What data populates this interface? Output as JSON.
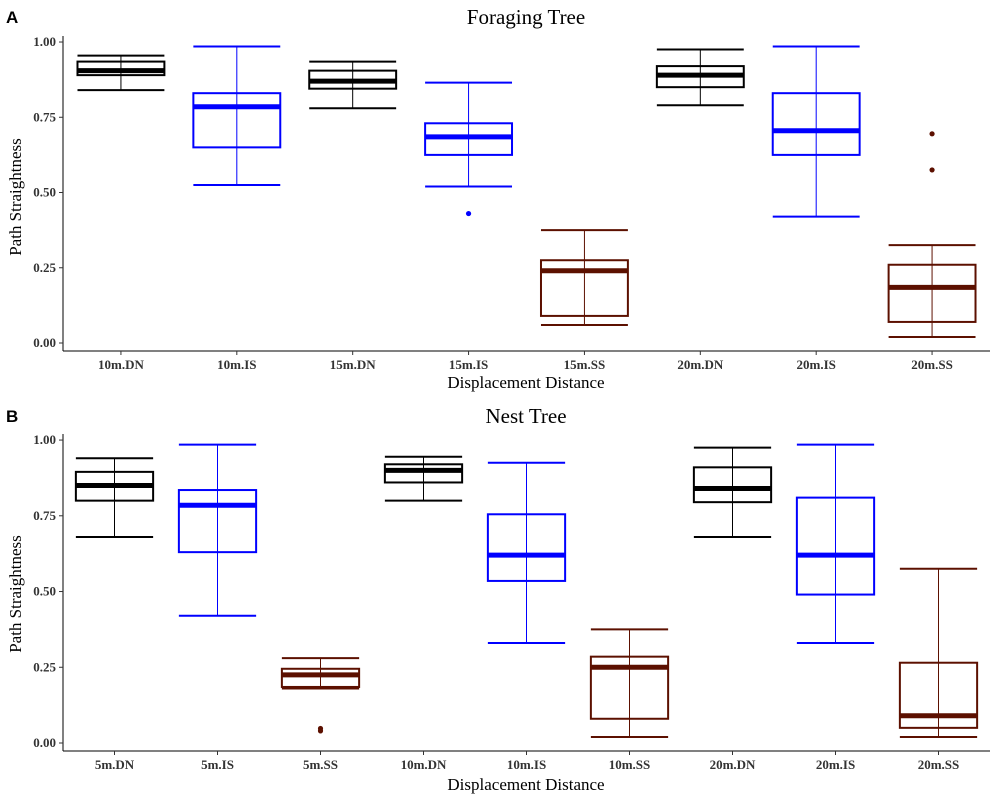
{
  "colors": {
    "DN": "#000000",
    "IS": "#0000ff",
    "SS": "#5c1000"
  },
  "chart_data": [
    {
      "type": "box",
      "panel": "A",
      "title": "Foraging Tree",
      "xlabel": "Displacement Distance",
      "ylabel": "Path Straightness",
      "ylim": [
        0,
        1.02
      ],
      "yticks": [
        "0.00",
        "0.25",
        "0.50",
        "0.75",
        "1.00"
      ],
      "grid": false,
      "categories": [
        "10m.DN",
        "10m.IS",
        "15m.DN",
        "15m.IS",
        "15m.SS",
        "20m.DN",
        "20m.IS",
        "20m.SS"
      ],
      "boxes": [
        {
          "group": "DN",
          "min": 0.84,
          "q1": 0.89,
          "median": 0.905,
          "q3": 0.935,
          "max": 0.955,
          "outliers": []
        },
        {
          "group": "IS",
          "min": 0.525,
          "q1": 0.65,
          "median": 0.785,
          "q3": 0.83,
          "max": 0.985,
          "outliers": []
        },
        {
          "group": "DN",
          "min": 0.78,
          "q1": 0.845,
          "median": 0.87,
          "q3": 0.905,
          "max": 0.935,
          "outliers": []
        },
        {
          "group": "IS",
          "min": 0.52,
          "q1": 0.625,
          "median": 0.685,
          "q3": 0.73,
          "max": 0.865,
          "outliers": [
            0.43
          ]
        },
        {
          "group": "SS",
          "min": 0.06,
          "q1": 0.09,
          "median": 0.24,
          "q3": 0.275,
          "max": 0.375,
          "outliers": []
        },
        {
          "group": "DN",
          "min": 0.79,
          "q1": 0.85,
          "median": 0.89,
          "q3": 0.92,
          "max": 0.975,
          "outliers": []
        },
        {
          "group": "IS",
          "min": 0.42,
          "q1": 0.625,
          "median": 0.705,
          "q3": 0.83,
          "max": 0.985,
          "outliers": []
        },
        {
          "group": "SS",
          "min": 0.02,
          "q1": 0.07,
          "median": 0.185,
          "q3": 0.26,
          "max": 0.325,
          "outliers": [
            0.575,
            0.695
          ]
        }
      ]
    },
    {
      "type": "box",
      "panel": "B",
      "title": "Nest Tree",
      "xlabel": "Displacement Distance",
      "ylabel": "Path Straightness",
      "ylim": [
        0,
        1.02
      ],
      "yticks": [
        "0.00",
        "0.25",
        "0.50",
        "0.75",
        "1.00"
      ],
      "grid": false,
      "categories": [
        "5m.DN",
        "5m.IS",
        "5m.SS",
        "10m.DN",
        "10m.IS",
        "10m.SS",
        "20m.DN",
        "20m.IS",
        "20m.SS"
      ],
      "boxes": [
        {
          "group": "DN",
          "min": 0.68,
          "q1": 0.8,
          "median": 0.85,
          "q3": 0.895,
          "max": 0.94,
          "outliers": []
        },
        {
          "group": "IS",
          "min": 0.42,
          "q1": 0.63,
          "median": 0.785,
          "q3": 0.835,
          "max": 0.985,
          "outliers": []
        },
        {
          "group": "SS",
          "min": 0.18,
          "q1": 0.185,
          "median": 0.225,
          "q3": 0.245,
          "max": 0.28,
          "outliers": [
            0.04,
            0.048
          ]
        },
        {
          "group": "DN",
          "min": 0.8,
          "q1": 0.86,
          "median": 0.9,
          "q3": 0.92,
          "max": 0.945,
          "outliers": []
        },
        {
          "group": "IS",
          "min": 0.33,
          "q1": 0.535,
          "median": 0.62,
          "q3": 0.755,
          "max": 0.925,
          "outliers": []
        },
        {
          "group": "SS",
          "min": 0.02,
          "q1": 0.08,
          "median": 0.25,
          "q3": 0.285,
          "max": 0.375,
          "outliers": []
        },
        {
          "group": "DN",
          "min": 0.68,
          "q1": 0.795,
          "median": 0.84,
          "q3": 0.91,
          "max": 0.975,
          "outliers": []
        },
        {
          "group": "IS",
          "min": 0.33,
          "q1": 0.49,
          "median": 0.62,
          "q3": 0.81,
          "max": 0.985,
          "outliers": []
        },
        {
          "group": "SS",
          "min": 0.02,
          "q1": 0.05,
          "median": 0.09,
          "q3": 0.265,
          "max": 0.575,
          "outliers": []
        }
      ]
    }
  ]
}
